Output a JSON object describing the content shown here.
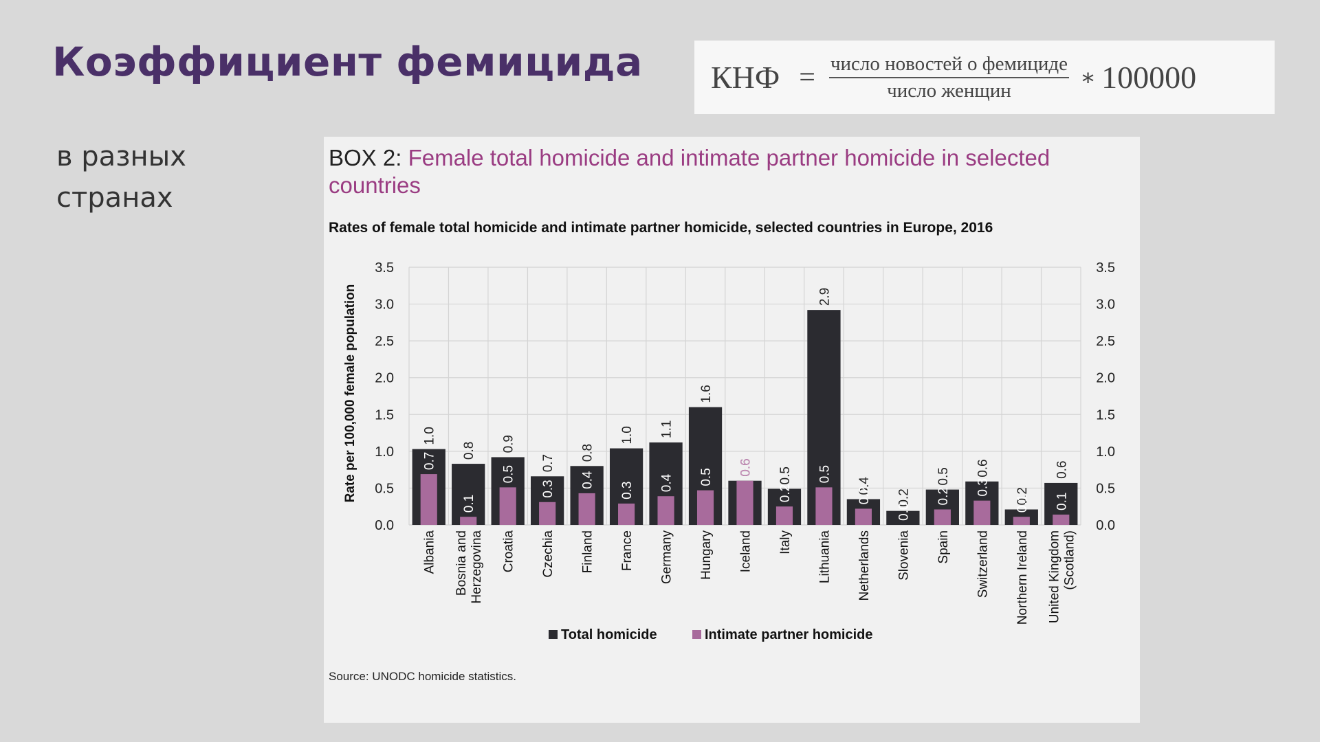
{
  "slide": {
    "title": "Коэффициент фемицида",
    "subtitle_lines": [
      "в разных",
      "странах"
    ]
  },
  "formula": {
    "lhs": "КНФ",
    "equals": "=",
    "numerator": "число новостей о фемициде",
    "denominator": "число женщин",
    "operator": "∗",
    "multiplier": "100000"
  },
  "box": {
    "tag": "BOX 2:",
    "title": "Female total homicide and intimate partner homicide in selected countries"
  },
  "chart_data": {
    "type": "bar",
    "title": "Rates of female total homicide and intimate partner homicide, selected countries in Europe, 2016",
    "ylabel": "Rate per 100,000 female population",
    "xlabel": "",
    "ylim": [
      0,
      3.5
    ],
    "yticks": [
      "0.0",
      "0.5",
      "1.0",
      "1.5",
      "2.0",
      "2.5",
      "3.0",
      "3.5"
    ],
    "grid": true,
    "legend": "bottom",
    "categories": [
      [
        "Albania"
      ],
      [
        "Bosnia and",
        "Herzegovina"
      ],
      [
        "Croatia"
      ],
      [
        "Czechia"
      ],
      [
        "Finland"
      ],
      [
        "France"
      ],
      [
        "Germany"
      ],
      [
        "Hungary"
      ],
      [
        "Iceland"
      ],
      [
        "Italy"
      ],
      [
        "Lithuania"
      ],
      [
        "Netherlands"
      ],
      [
        "Slovenia"
      ],
      [
        "Spain"
      ],
      [
        "Switzerland"
      ],
      [
        "Northern Ireland"
      ],
      [
        "United Kingdom",
        "(Scotland)"
      ]
    ],
    "series": [
      {
        "name": "Total homicide",
        "color": "#2b2b30",
        "values": [
          1.03,
          0.83,
          0.92,
          0.66,
          0.8,
          1.04,
          1.12,
          1.6,
          0.6,
          0.49,
          2.92,
          0.35,
          0.19,
          0.48,
          0.59,
          0.21,
          0.57
        ],
        "labels": [
          "1.0",
          "0.8",
          "0.9",
          "0.7",
          "0.8",
          "1.0",
          "1.1",
          "1.6",
          "0.6",
          "0.5",
          "2.9",
          "0.4",
          "0.2",
          "0.5",
          "0.6",
          "0.2",
          "0.6"
        ]
      },
      {
        "name": "Intimate partner homicide",
        "color": "#a86b9c",
        "values": [
          0.69,
          0.11,
          0.51,
          0.31,
          0.43,
          0.29,
          0.39,
          0.47,
          0.6,
          0.25,
          0.51,
          0.22,
          0.0,
          0.21,
          0.33,
          0.11,
          0.14
        ],
        "labels": [
          "0.7",
          "0.1",
          "0.5",
          "0.3",
          "0.4",
          "0.3",
          "0.4",
          "0.5",
          "0.6",
          "0.2",
          "0.5",
          "0.2",
          "0.0",
          "0.2",
          "0.3",
          "0.1",
          "0.1"
        ]
      }
    ]
  },
  "source": "Source: UNODC homicide statistics."
}
